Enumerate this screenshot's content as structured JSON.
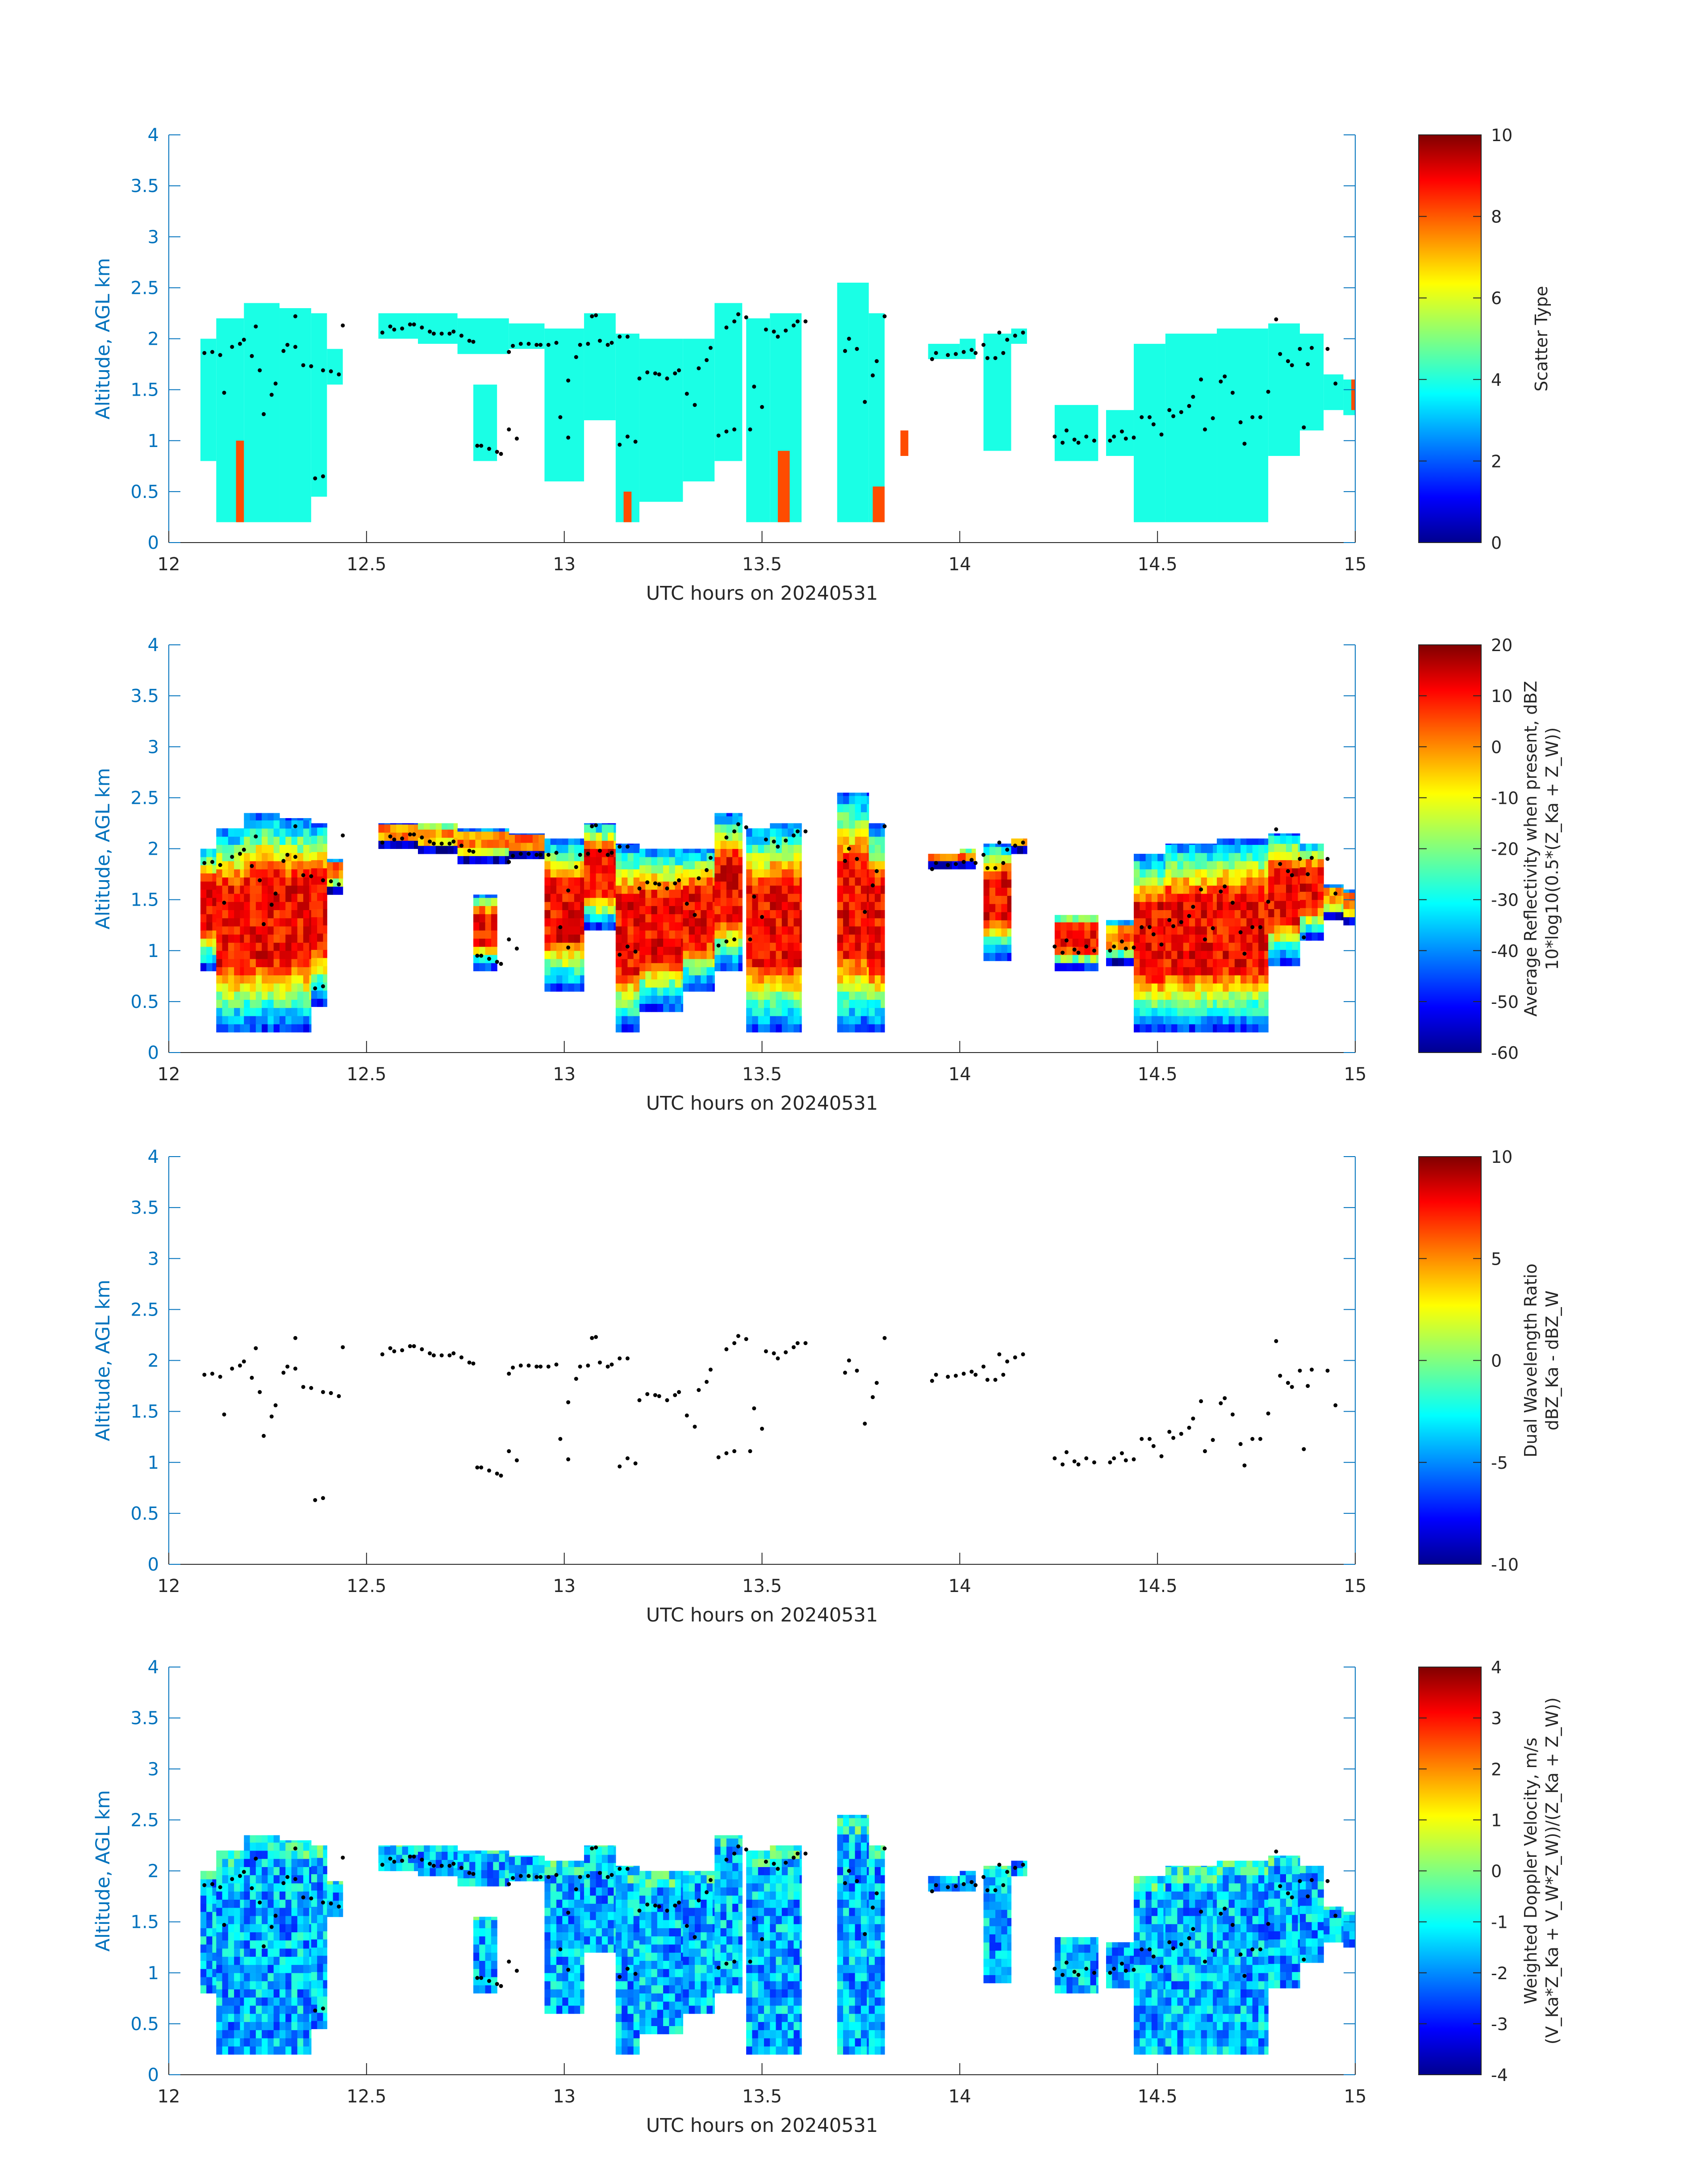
{
  "figure": {
    "colors": {
      "axis": "#0072BD",
      "text": "#262626",
      "cloud_mask": "#40FFDE",
      "point": "#000000"
    }
  },
  "chart_data": [
    {
      "type": "heatmap",
      "xlabel": "UTC hours on 20240531",
      "ylabel": "Altitude, AGL km",
      "xlim": [
        12,
        15
      ],
      "ylim": [
        0,
        4
      ],
      "xticks": [
        "12",
        "12.5",
        "13",
        "13.5",
        "14",
        "14.5",
        "15"
      ],
      "yticks": [
        "0",
        "0.5",
        "1",
        "1.5",
        "2",
        "2.5",
        "3",
        "3.5",
        "4"
      ],
      "colorbar": {
        "label": [
          "Scatter Type"
        ],
        "min": 0,
        "max": 10,
        "ticks": [
          "0",
          "2",
          "4",
          "6",
          "8",
          "10"
        ]
      },
      "field": "scatter_type",
      "dominant_value": 4,
      "secondary_value": 8,
      "secondary_columns": [
        {
          "x": [
            12.17,
            12.19
          ],
          "y": [
            0.2,
            1.0
          ]
        },
        {
          "x": [
            13.15,
            13.17
          ],
          "y": [
            0.2,
            0.5
          ]
        },
        {
          "x": [
            13.54,
            13.57
          ],
          "y": [
            0.2,
            0.9
          ]
        },
        {
          "x": [
            13.78,
            13.81
          ],
          "y": [
            0.2,
            0.55
          ]
        },
        {
          "x": [
            13.85,
            13.87
          ],
          "y": [
            0.85,
            1.1
          ]
        },
        {
          "x": [
            14.99,
            15.0
          ],
          "y": [
            1.3,
            1.6
          ]
        }
      ]
    },
    {
      "type": "heatmap",
      "xlabel": "UTC hours on 20240531",
      "ylabel": "Altitude, AGL km",
      "xlim": [
        12,
        15
      ],
      "ylim": [
        0,
        4
      ],
      "xticks": [
        "12",
        "12.5",
        "13",
        "13.5",
        "14",
        "14.5",
        "15"
      ],
      "yticks": [
        "0",
        "0.5",
        "1",
        "1.5",
        "2",
        "2.5",
        "3",
        "3.5",
        "4"
      ],
      "colorbar": {
        "label": [
          "Average Reflectivity when present, dBZ",
          "10*log10(0.5*(Z_Ka + Z_W))"
        ],
        "min": -60,
        "max": 20,
        "ticks": [
          "-60",
          "-50",
          "-40",
          "-30",
          "-20",
          "-10",
          "0",
          "10",
          "20"
        ]
      },
      "field": "reflectivity"
    },
    {
      "type": "heatmap",
      "xlabel": "UTC hours on 20240531",
      "ylabel": "Altitude, AGL km",
      "xlim": [
        12,
        15
      ],
      "ylim": [
        0,
        4
      ],
      "xticks": [
        "12",
        "12.5",
        "13",
        "13.5",
        "14",
        "14.5",
        "15"
      ],
      "yticks": [
        "0",
        "0.5",
        "1",
        "1.5",
        "2",
        "2.5",
        "3",
        "3.5",
        "4"
      ],
      "colorbar": {
        "label": [
          "Dual Wavelength Ratio",
          "dBZ_Ka - dBZ_W"
        ],
        "min": -10,
        "max": 10,
        "ticks": [
          "-10",
          "-5",
          "0",
          "5",
          "10"
        ]
      },
      "field": "none"
    },
    {
      "type": "heatmap",
      "xlabel": "UTC hours on 20240531",
      "ylabel": "Altitude, AGL km",
      "xlim": [
        12,
        15
      ],
      "ylim": [
        0,
        4
      ],
      "xticks": [
        "12",
        "12.5",
        "13",
        "13.5",
        "14",
        "14.5",
        "15"
      ],
      "yticks": [
        "0",
        "0.5",
        "1",
        "1.5",
        "2",
        "2.5",
        "3",
        "3.5",
        "4"
      ],
      "colorbar": {
        "label": [
          "Weighted Doppler Velocity, m/s",
          "(V_Ka*Z_Ka + V_W*Z_W))/(Z_Ka + Z_W))"
        ],
        "min": -4,
        "max": 4,
        "ticks": [
          "-4",
          "-3",
          "-2",
          "-1",
          "0",
          "1",
          "2",
          "3",
          "4"
        ]
      },
      "field": "velocity"
    }
  ],
  "cloud_segments": [
    {
      "x": [
        12.08,
        12.12
      ],
      "bottom": 0.8,
      "top": 2.0
    },
    {
      "x": [
        12.12,
        12.19
      ],
      "bottom": 0.2,
      "top": 2.2
    },
    {
      "x": [
        12.19,
        12.28
      ],
      "bottom": 0.2,
      "top": 2.35
    },
    {
      "x": [
        12.28,
        12.36
      ],
      "bottom": 0.2,
      "top": 2.3
    },
    {
      "x": [
        12.36,
        12.4
      ],
      "bottom": 0.45,
      "top": 2.25
    },
    {
      "x": [
        12.4,
        12.44
      ],
      "bottom": 1.55,
      "top": 1.9
    },
    {
      "x": [
        12.53,
        12.63
      ],
      "bottom": 2.0,
      "top": 2.25
    },
    {
      "x": [
        12.63,
        12.73
      ],
      "bottom": 1.95,
      "top": 2.25
    },
    {
      "x": [
        12.73,
        12.86
      ],
      "bottom": 1.85,
      "top": 2.2
    },
    {
      "x": [
        12.77,
        12.83
      ],
      "bottom": 0.8,
      "top": 1.55
    },
    {
      "x": [
        12.86,
        12.95
      ],
      "bottom": 1.9,
      "top": 2.15
    },
    {
      "x": [
        12.95,
        13.05
      ],
      "bottom": 0.6,
      "top": 2.1
    },
    {
      "x": [
        13.05,
        13.13
      ],
      "bottom": 1.2,
      "top": 2.25
    },
    {
      "x": [
        13.13,
        13.19
      ],
      "bottom": 0.2,
      "top": 2.05
    },
    {
      "x": [
        13.19,
        13.3
      ],
      "bottom": 0.4,
      "top": 2.0
    },
    {
      "x": [
        13.3,
        13.38
      ],
      "bottom": 0.6,
      "top": 2.0
    },
    {
      "x": [
        13.38,
        13.45
      ],
      "bottom": 0.8,
      "top": 2.35
    },
    {
      "x": [
        13.46,
        13.52
      ],
      "bottom": 0.2,
      "top": 2.2
    },
    {
      "x": [
        13.52,
        13.6
      ],
      "bottom": 0.2,
      "top": 2.25
    },
    {
      "x": [
        13.69,
        13.77
      ],
      "bottom": 0.2,
      "top": 2.55
    },
    {
      "x": [
        13.77,
        13.81
      ],
      "bottom": 0.2,
      "top": 2.25
    },
    {
      "x": [
        13.92,
        14.0
      ],
      "bottom": 1.8,
      "top": 1.95
    },
    {
      "x": [
        14.0,
        14.04
      ],
      "bottom": 1.8,
      "top": 2.0
    },
    {
      "x": [
        14.06,
        14.13
      ],
      "bottom": 0.9,
      "top": 2.05
    },
    {
      "x": [
        14.13,
        14.17
      ],
      "bottom": 1.95,
      "top": 2.1
    },
    {
      "x": [
        14.24,
        14.35
      ],
      "bottom": 0.8,
      "top": 1.35
    },
    {
      "x": [
        14.37,
        14.44
      ],
      "bottom": 0.85,
      "top": 1.3
    },
    {
      "x": [
        14.44,
        14.52
      ],
      "bottom": 0.2,
      "top": 1.95
    },
    {
      "x": [
        14.52,
        14.65
      ],
      "bottom": 0.2,
      "top": 2.05
    },
    {
      "x": [
        14.65,
        14.78
      ],
      "bottom": 0.2,
      "top": 2.1
    },
    {
      "x": [
        14.78,
        14.86
      ],
      "bottom": 0.85,
      "top": 2.15
    },
    {
      "x": [
        14.86,
        14.92
      ],
      "bottom": 1.1,
      "top": 2.05
    },
    {
      "x": [
        14.92,
        14.97
      ],
      "bottom": 1.3,
      "top": 1.65
    },
    {
      "x": [
        14.97,
        15.0
      ],
      "bottom": 1.25,
      "top": 1.6
    }
  ],
  "cloud_top_points": [
    [
      12.09,
      1.86
    ],
    [
      12.11,
      1.87
    ],
    [
      12.13,
      1.84
    ],
    [
      12.14,
      1.47
    ],
    [
      12.16,
      1.92
    ],
    [
      12.18,
      1.95
    ],
    [
      12.19,
      1.99
    ],
    [
      12.21,
      1.83
    ],
    [
      12.22,
      2.12
    ],
    [
      12.23,
      1.69
    ],
    [
      12.24,
      1.26
    ],
    [
      12.26,
      1.45
    ],
    [
      12.27,
      1.56
    ],
    [
      12.29,
      1.88
    ],
    [
      12.3,
      1.94
    ],
    [
      12.32,
      1.92
    ],
    [
      12.32,
      2.22
    ],
    [
      12.34,
      1.74
    ],
    [
      12.36,
      1.73
    ],
    [
      12.37,
      0.63
    ],
    [
      12.39,
      0.65
    ],
    [
      12.39,
      1.69
    ],
    [
      12.41,
      1.68
    ],
    [
      12.43,
      1.65
    ],
    [
      12.44,
      2.13
    ],
    [
      12.54,
      2.06
    ],
    [
      12.56,
      2.12
    ],
    [
      12.57,
      2.09
    ],
    [
      12.59,
      2.1
    ],
    [
      12.61,
      2.14
    ],
    [
      12.62,
      2.14
    ],
    [
      12.64,
      2.11
    ],
    [
      12.66,
      2.07
    ],
    [
      12.67,
      2.05
    ],
    [
      12.69,
      2.05
    ],
    [
      12.71,
      2.05
    ],
    [
      12.72,
      2.07
    ],
    [
      12.74,
      2.03
    ],
    [
      12.76,
      1.98
    ],
    [
      12.77,
      1.97
    ],
    [
      12.78,
      0.95
    ],
    [
      12.79,
      0.95
    ],
    [
      12.81,
      0.92
    ],
    [
      12.83,
      0.89
    ],
    [
      12.84,
      0.87
    ],
    [
      12.86,
      1.87
    ],
    [
      12.86,
      1.11
    ],
    [
      12.87,
      1.93
    ],
    [
      12.88,
      1.02
    ],
    [
      12.89,
      1.95
    ],
    [
      12.91,
      1.95
    ],
    [
      12.93,
      1.94
    ],
    [
      12.94,
      1.94
    ],
    [
      12.96,
      1.94
    ],
    [
      12.98,
      1.96
    ],
    [
      12.99,
      1.23
    ],
    [
      13.01,
      1.59
    ],
    [
      13.01,
      1.03
    ],
    [
      13.03,
      1.82
    ],
    [
      13.04,
      1.94
    ],
    [
      13.06,
      1.95
    ],
    [
      13.07,
      2.22
    ],
    [
      13.08,
      2.23
    ],
    [
      13.09,
      1.98
    ],
    [
      13.11,
      1.94
    ],
    [
      13.12,
      1.96
    ],
    [
      13.14,
      2.02
    ],
    [
      13.14,
      0.96
    ],
    [
      13.16,
      2.02
    ],
    [
      13.16,
      1.04
    ],
    [
      13.18,
      0.99
    ],
    [
      13.19,
      1.61
    ],
    [
      13.21,
      1.67
    ],
    [
      13.23,
      1.66
    ],
    [
      13.24,
      1.65
    ],
    [
      13.26,
      1.61
    ],
    [
      13.28,
      1.66
    ],
    [
      13.29,
      1.69
    ],
    [
      13.31,
      1.46
    ],
    [
      13.33,
      1.35
    ],
    [
      13.34,
      1.71
    ],
    [
      13.36,
      1.79
    ],
    [
      13.37,
      1.91
    ],
    [
      13.39,
      1.05
    ],
    [
      13.41,
      1.09
    ],
    [
      13.41,
      2.11
    ],
    [
      13.43,
      1.11
    ],
    [
      13.43,
      2.17
    ],
    [
      13.44,
      2.24
    ],
    [
      13.46,
      2.21
    ],
    [
      13.47,
      1.11
    ],
    [
      13.48,
      1.53
    ],
    [
      13.5,
      1.33
    ],
    [
      13.51,
      2.09
    ],
    [
      13.53,
      2.07
    ],
    [
      13.54,
      2.02
    ],
    [
      13.56,
      2.08
    ],
    [
      13.58,
      2.13
    ],
    [
      13.59,
      2.17
    ],
    [
      13.61,
      2.17
    ],
    [
      13.71,
      1.88
    ],
    [
      13.72,
      2.0
    ],
    [
      13.74,
      1.9
    ],
    [
      13.76,
      1.38
    ],
    [
      13.78,
      1.64
    ],
    [
      13.79,
      1.78
    ],
    [
      13.81,
      2.22
    ],
    [
      13.93,
      1.8
    ],
    [
      13.94,
      1.86
    ],
    [
      13.97,
      1.84
    ],
    [
      13.99,
      1.85
    ],
    [
      14.01,
      1.87
    ],
    [
      14.03,
      1.89
    ],
    [
      14.04,
      1.86
    ],
    [
      14.06,
      1.94
    ],
    [
      14.07,
      1.81
    ],
    [
      14.09,
      1.81
    ],
    [
      14.1,
      2.06
    ],
    [
      14.11,
      1.86
    ],
    [
      14.12,
      1.99
    ],
    [
      14.14,
      2.03
    ],
    [
      14.16,
      2.06
    ],
    [
      14.24,
      1.04
    ],
    [
      14.26,
      0.98
    ],
    [
      14.27,
      1.1
    ],
    [
      14.29,
      1.01
    ],
    [
      14.3,
      0.98
    ],
    [
      14.32,
      1.04
    ],
    [
      14.34,
      1.0
    ],
    [
      14.38,
      1.0
    ],
    [
      14.39,
      1.04
    ],
    [
      14.41,
      1.09
    ],
    [
      14.42,
      1.02
    ],
    [
      14.44,
      1.03
    ],
    [
      14.46,
      1.23
    ],
    [
      14.48,
      1.23
    ],
    [
      14.49,
      1.16
    ],
    [
      14.51,
      1.06
    ],
    [
      14.53,
      1.3
    ],
    [
      14.54,
      1.24
    ],
    [
      14.56,
      1.28
    ],
    [
      14.58,
      1.34
    ],
    [
      14.59,
      1.43
    ],
    [
      14.61,
      1.6
    ],
    [
      14.62,
      1.11
    ],
    [
      14.64,
      1.22
    ],
    [
      14.66,
      1.58
    ],
    [
      14.67,
      1.63
    ],
    [
      14.69,
      1.47
    ],
    [
      14.71,
      1.18
    ],
    [
      14.72,
      0.97
    ],
    [
      14.74,
      1.23
    ],
    [
      14.76,
      1.23
    ],
    [
      14.78,
      1.48
    ],
    [
      14.8,
      2.19
    ],
    [
      14.81,
      1.85
    ],
    [
      14.83,
      1.78
    ],
    [
      14.84,
      1.74
    ],
    [
      14.86,
      1.9
    ],
    [
      14.87,
      1.13
    ],
    [
      14.88,
      1.75
    ],
    [
      14.89,
      1.91
    ],
    [
      14.93,
      1.9
    ],
    [
      14.95,
      1.56
    ]
  ]
}
